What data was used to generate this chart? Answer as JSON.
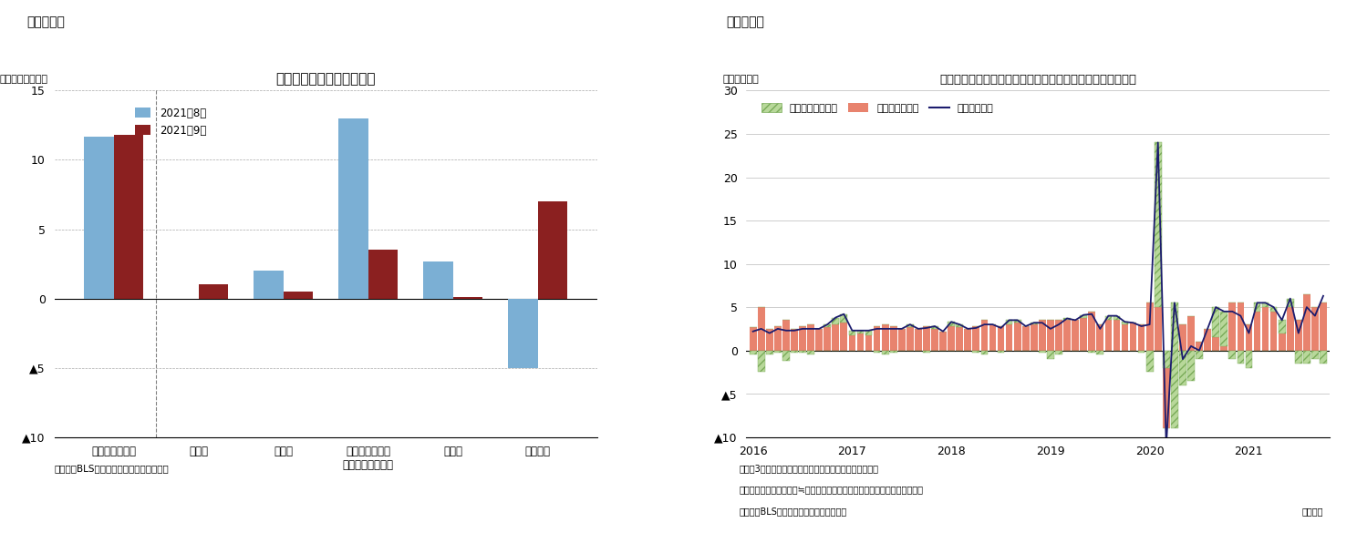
{
  "fig3": {
    "title": "前月分・前々月分の改定幅",
    "ylabel": "（前月差、万人）",
    "figure_label": "（図表３）",
    "categories": [
      "非農業部門合計",
      "建設業",
      "製造業",
      "民間サービス業\n（小売業を除く）",
      "小売業",
      "政府部門"
    ],
    "aug2021": [
      11.7,
      0.0,
      2.0,
      13.0,
      2.7,
      -5.0
    ],
    "sep2021": [
      11.8,
      1.0,
      0.5,
      3.5,
      0.1,
      7.0
    ],
    "color_aug": "#7BAFD4",
    "color_sep": "#8B2020",
    "ylim": [
      -10,
      15
    ],
    "yticks": [
      -10,
      -5,
      0,
      5,
      10,
      15
    ],
    "ytick_labels": [
      "▲10",
      "▲5",
      "0",
      "5",
      "10",
      "15"
    ],
    "source": "（資料）BLSよりニッセイ基礎研究所作成",
    "legend_aug": "2021年8月",
    "legend_sep": "2021年9月"
  },
  "fig4": {
    "title": "民間非農業部門の週当たり賃金伸び率（年率換算、寄与度）",
    "ylabel": "（年率、％）",
    "figure_label": "（図表４）",
    "ylim": [
      -10,
      30
    ],
    "yticks": [
      -10,
      -5,
      0,
      5,
      10,
      15,
      20,
      25,
      30
    ],
    "ytick_labels": [
      "▲10",
      "▲5",
      "0",
      "5",
      "10",
      "15",
      "20",
      "25",
      "30"
    ],
    "color_hours": "#B8D89A",
    "color_hourly_wage": "#E8836E",
    "color_line": "#1C1C6E",
    "legend_hours": "週当たり労働時間",
    "legend_hourly": "時間当たり賃金",
    "legend_weekly": "週当たり賃金",
    "note1": "（注）3カ月後方移動平均後の前月比伸び率（年率換算）",
    "note2": "　　週当たり賃金伸び率≒週当たり労働時間伸び率＋時間当たり賃金伸び率",
    "source": "（資料）BLSよりニッセイ基礎研究所作成",
    "monthly_note": "（月次）",
    "hours_data": [
      -0.5,
      -2.5,
      -0.5,
      -0.3,
      -1.2,
      -0.2,
      -0.3,
      -0.5,
      0.0,
      0.3,
      0.8,
      1.0,
      0.5,
      0.3,
      0.5,
      -0.3,
      -0.5,
      -0.3,
      0.0,
      0.3,
      0.0,
      -0.2,
      0.3,
      0.0,
      0.5,
      0.3,
      0.0,
      -0.2,
      -0.5,
      0.0,
      -0.2,
      0.5,
      0.3,
      0.0,
      0.2,
      -0.3,
      -1.0,
      -0.5,
      0.2,
      0.0,
      0.3,
      -0.3,
      -0.5,
      0.5,
      0.5,
      0.3,
      0.0,
      -0.2,
      -2.5,
      19.0,
      -2.0,
      14.5,
      -4.0,
      -3.5,
      -1.0,
      0.0,
      3.5,
      4.0,
      -1.0,
      -1.5,
      -2.0,
      1.0,
      0.5,
      0.5,
      1.5,
      1.0,
      -1.5,
      -1.5,
      -1.0,
      -1.5
    ],
    "hourly_data": [
      2.7,
      5.0,
      2.5,
      2.8,
      3.5,
      2.5,
      2.8,
      3.0,
      2.5,
      2.7,
      3.0,
      3.2,
      1.8,
      2.0,
      1.8,
      2.8,
      3.0,
      2.8,
      2.5,
      2.7,
      2.5,
      2.8,
      2.5,
      2.2,
      2.8,
      2.7,
      2.5,
      2.8,
      3.5,
      3.0,
      2.8,
      3.0,
      3.2,
      2.8,
      3.0,
      3.5,
      3.5,
      3.5,
      3.5,
      3.5,
      3.8,
      4.5,
      3.0,
      3.5,
      3.5,
      3.0,
      3.2,
      3.0,
      5.5,
      5.0,
      -9.0,
      -9.0,
      3.0,
      4.0,
      1.0,
      2.5,
      1.5,
      0.5,
      5.5,
      5.5,
      3.0,
      4.5,
      5.0,
      4.5,
      2.0,
      5.0,
      3.5,
      6.5,
      5.0,
      5.5
    ],
    "weekly_line": [
      2.2,
      2.5,
      2.0,
      2.5,
      2.3,
      2.3,
      2.5,
      2.5,
      2.5,
      3.0,
      3.8,
      4.2,
      2.3,
      2.3,
      2.3,
      2.5,
      2.5,
      2.5,
      2.5,
      3.0,
      2.5,
      2.6,
      2.8,
      2.2,
      3.3,
      3.0,
      2.5,
      2.6,
      3.0,
      3.0,
      2.6,
      3.5,
      3.5,
      2.8,
      3.2,
      3.2,
      2.5,
      3.0,
      3.7,
      3.5,
      4.1,
      4.2,
      2.5,
      4.0,
      4.0,
      3.3,
      3.2,
      2.8,
      3.0,
      24.0,
      -11.0,
      5.5,
      -1.0,
      0.5,
      0.0,
      2.5,
      5.0,
      4.5,
      4.5,
      4.0,
      2.0,
      5.5,
      5.5,
      5.0,
      3.5,
      6.0,
      2.0,
      5.0,
      4.0,
      6.3
    ],
    "n_months": 70,
    "start_year": 2016,
    "start_month": 1
  }
}
